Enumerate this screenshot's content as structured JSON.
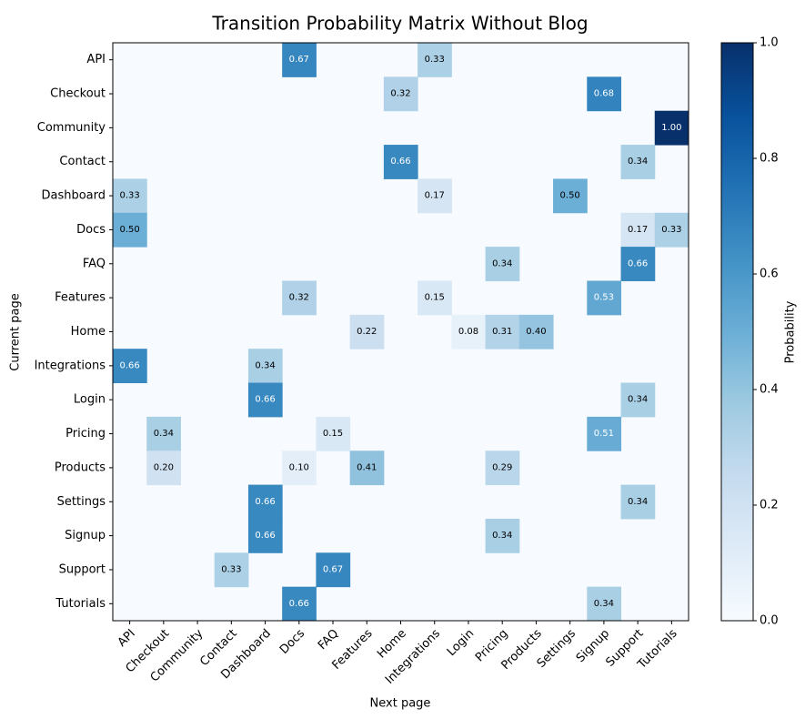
{
  "chart_data": {
    "type": "heatmap",
    "title": "Transition Probability Matrix Without Blog",
    "xlabel": "Next page",
    "ylabel": "Current page",
    "colorbar_label": "Probability",
    "colorbar_ticks": [
      "0.0",
      "0.2",
      "0.4",
      "0.6",
      "0.8",
      "1.0"
    ],
    "vmin": 0,
    "vmax": 1,
    "colormap": "Blues",
    "rows": [
      "API",
      "Checkout",
      "Community",
      "Contact",
      "Dashboard",
      "Docs",
      "FAQ",
      "Features",
      "Home",
      "Integrations",
      "Login",
      "Pricing",
      "Products",
      "Settings",
      "Signup",
      "Support",
      "Tutorials"
    ],
    "columns": [
      "API",
      "Checkout",
      "Community",
      "Contact",
      "Dashboard",
      "Docs",
      "FAQ",
      "Features",
      "Home",
      "Integrations",
      "Login",
      "Pricing",
      "Products",
      "Settings",
      "Signup",
      "Support",
      "Tutorials"
    ],
    "cells": [
      {
        "row": "API",
        "col": "Docs",
        "value": 0.67,
        "label": "0.67"
      },
      {
        "row": "API",
        "col": "Integrations",
        "value": 0.33,
        "label": "0.33"
      },
      {
        "row": "Checkout",
        "col": "Home",
        "value": 0.32,
        "label": "0.32"
      },
      {
        "row": "Checkout",
        "col": "Signup",
        "value": 0.68,
        "label": "0.68"
      },
      {
        "row": "Community",
        "col": "Tutorials",
        "value": 1.0,
        "label": "1.00"
      },
      {
        "row": "Contact",
        "col": "Home",
        "value": 0.66,
        "label": "0.66"
      },
      {
        "row": "Contact",
        "col": "Support",
        "value": 0.34,
        "label": "0.34"
      },
      {
        "row": "Dashboard",
        "col": "API",
        "value": 0.33,
        "label": "0.33"
      },
      {
        "row": "Dashboard",
        "col": "Integrations",
        "value": 0.17,
        "label": "0.17"
      },
      {
        "row": "Dashboard",
        "col": "Settings",
        "value": 0.5,
        "label": "0.50"
      },
      {
        "row": "Docs",
        "col": "API",
        "value": 0.5,
        "label": "0.50"
      },
      {
        "row": "Docs",
        "col": "Support",
        "value": 0.17,
        "label": "0.17"
      },
      {
        "row": "Docs",
        "col": "Tutorials",
        "value": 0.33,
        "label": "0.33"
      },
      {
        "row": "FAQ",
        "col": "Pricing",
        "value": 0.34,
        "label": "0.34"
      },
      {
        "row": "FAQ",
        "col": "Support",
        "value": 0.66,
        "label": "0.66"
      },
      {
        "row": "Features",
        "col": "Docs",
        "value": 0.32,
        "label": "0.32"
      },
      {
        "row": "Features",
        "col": "Integrations",
        "value": 0.15,
        "label": "0.15"
      },
      {
        "row": "Features",
        "col": "Signup",
        "value": 0.53,
        "label": "0.53"
      },
      {
        "row": "Home",
        "col": "Features",
        "value": 0.22,
        "label": "0.22"
      },
      {
        "row": "Home",
        "col": "Login",
        "value": 0.08,
        "label": "0.08"
      },
      {
        "row": "Home",
        "col": "Pricing",
        "value": 0.31,
        "label": "0.31"
      },
      {
        "row": "Home",
        "col": "Products",
        "value": 0.4,
        "label": "0.40"
      },
      {
        "row": "Integrations",
        "col": "API",
        "value": 0.66,
        "label": "0.66"
      },
      {
        "row": "Integrations",
        "col": "Dashboard",
        "value": 0.34,
        "label": "0.34"
      },
      {
        "row": "Login",
        "col": "Dashboard",
        "value": 0.66,
        "label": "0.66"
      },
      {
        "row": "Login",
        "col": "Support",
        "value": 0.34,
        "label": "0.34"
      },
      {
        "row": "Pricing",
        "col": "Checkout",
        "value": 0.34,
        "label": "0.34"
      },
      {
        "row": "Pricing",
        "col": "FAQ",
        "value": 0.15,
        "label": "0.15"
      },
      {
        "row": "Pricing",
        "col": "Signup",
        "value": 0.51,
        "label": "0.51"
      },
      {
        "row": "Products",
        "col": "Checkout",
        "value": 0.2,
        "label": "0.20"
      },
      {
        "row": "Products",
        "col": "Docs",
        "value": 0.1,
        "label": "0.10"
      },
      {
        "row": "Products",
        "col": "Features",
        "value": 0.41,
        "label": "0.41"
      },
      {
        "row": "Products",
        "col": "Pricing",
        "value": 0.29,
        "label": "0.29"
      },
      {
        "row": "Settings",
        "col": "Dashboard",
        "value": 0.66,
        "label": "0.66"
      },
      {
        "row": "Settings",
        "col": "Support",
        "value": 0.34,
        "label": "0.34"
      },
      {
        "row": "Signup",
        "col": "Dashboard",
        "value": 0.66,
        "label": "0.66"
      },
      {
        "row": "Signup",
        "col": "Pricing",
        "value": 0.34,
        "label": "0.34"
      },
      {
        "row": "Support",
        "col": "Contact",
        "value": 0.33,
        "label": "0.33"
      },
      {
        "row": "Support",
        "col": "FAQ",
        "value": 0.67,
        "label": "0.67"
      },
      {
        "row": "Tutorials",
        "col": "Docs",
        "value": 0.66,
        "label": "0.66"
      },
      {
        "row": "Tutorials",
        "col": "Signup",
        "value": 0.34,
        "label": "0.34"
      }
    ]
  }
}
